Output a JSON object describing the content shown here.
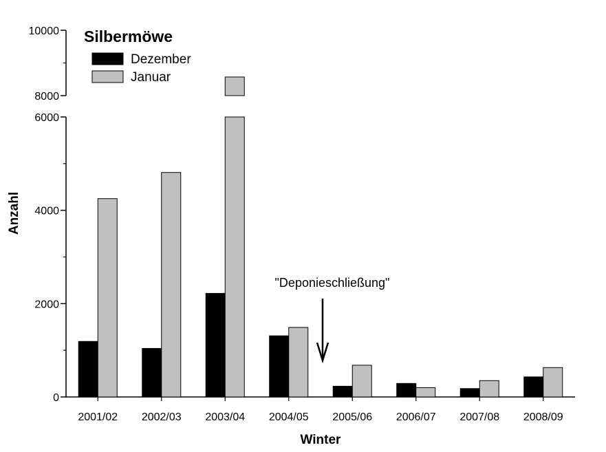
{
  "chart_data": {
    "type": "bar",
    "title": "Silbermöwe",
    "xlabel": "Winter",
    "ylabel": "Anzahl",
    "categories": [
      "2001/02",
      "2002/03",
      "2003/04",
      "2004/05",
      "2005/06",
      "2006/07",
      "2007/08",
      "2008/09"
    ],
    "series": [
      {
        "name": "Dezember",
        "color": "#000000",
        "values": [
          1190,
          1040,
          2220,
          1310,
          230,
          290,
          180,
          430
        ]
      },
      {
        "name": "Januar",
        "color": "#c0c0c0",
        "values": [
          4250,
          4810,
          8570,
          1490,
          680,
          200,
          350,
          630
        ]
      }
    ],
    "y_axis": {
      "broken": true,
      "lower_range": [
        0,
        6000
      ],
      "upper_range": [
        8000,
        10000
      ],
      "lower_ticks": [
        "0",
        "2000",
        "4000",
        "6000"
      ],
      "upper_ticks": [
        "8000",
        "10000"
      ]
    },
    "annotation": {
      "text": "\"Deponieschließung\"",
      "arrow": "down",
      "position_between": [
        "2004/05",
        "2005/06"
      ]
    },
    "legend": "top-left",
    "grid": false
  }
}
